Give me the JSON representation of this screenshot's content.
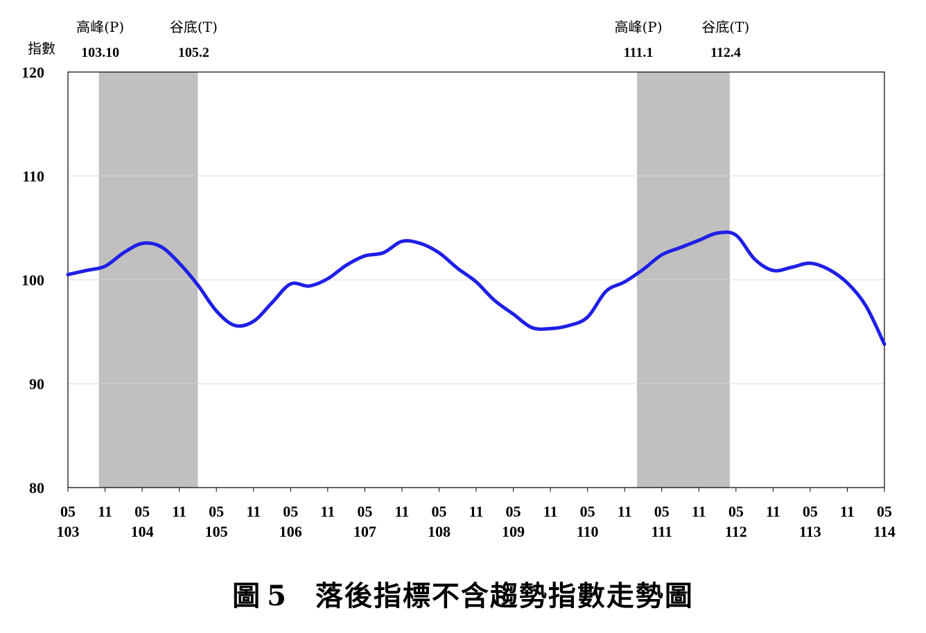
{
  "caption": {
    "figure_label": "圖",
    "figure_number": "5",
    "title": "落後指標不含趨勢指數走勢圖"
  },
  "colors": {
    "line": "#1f1fe6",
    "shade": "#c0c0c0",
    "grid": "#d9d9d9",
    "axis": "#000000"
  },
  "chart_data": {
    "type": "line",
    "ylabel": "指數",
    "ylim": [
      80,
      120
    ],
    "yticks": [
      80,
      90,
      100,
      110,
      120
    ],
    "grid": "horizontal",
    "x_start": "103-05",
    "x_end": "114-05",
    "xtick_labels": [
      {
        "month": "05",
        "year": "103"
      },
      {
        "month": "11",
        "year": ""
      },
      {
        "month": "05",
        "year": "104"
      },
      {
        "month": "11",
        "year": ""
      },
      {
        "month": "05",
        "year": "105"
      },
      {
        "month": "11",
        "year": ""
      },
      {
        "month": "05",
        "year": "106"
      },
      {
        "month": "11",
        "year": ""
      },
      {
        "month": "05",
        "year": "107"
      },
      {
        "month": "11",
        "year": ""
      },
      {
        "month": "05",
        "year": "108"
      },
      {
        "month": "11",
        "year": ""
      },
      {
        "month": "05",
        "year": "109"
      },
      {
        "month": "11",
        "year": ""
      },
      {
        "month": "05",
        "year": "110"
      },
      {
        "month": "11",
        "year": ""
      },
      {
        "month": "05",
        "year": "111"
      },
      {
        "month": "11",
        "year": ""
      },
      {
        "month": "05",
        "year": "112"
      },
      {
        "month": "11",
        "year": ""
      },
      {
        "month": "05",
        "year": "113"
      },
      {
        "month": "11",
        "year": ""
      },
      {
        "month": "05",
        "year": "114"
      }
    ],
    "shaded_periods": [
      {
        "start": "103-10",
        "end": "105-02",
        "peak_label": "高峰(P)",
        "peak_date": "103.10",
        "trough_label": "谷底(T)",
        "trough_date": "105.2"
      },
      {
        "start": "111-01",
        "end": "112-04",
        "peak_label": "高峰(P)",
        "peak_date": "111.1",
        "trough_label": "谷底(T)",
        "trough_date": "112.4"
      }
    ],
    "series": [
      {
        "x": [
          "103-05",
          "103-08",
          "103-11",
          "104-02",
          "104-05",
          "104-08",
          "104-11",
          "105-02",
          "105-05",
          "105-08",
          "105-11",
          "106-02",
          "106-05",
          "106-08",
          "106-11",
          "107-02",
          "107-05",
          "107-08",
          "107-11",
          "108-02",
          "108-05",
          "108-08",
          "108-11",
          "109-02",
          "109-05",
          "109-08",
          "109-11",
          "110-02",
          "110-05",
          "110-08",
          "110-11",
          "111-02",
          "111-05",
          "111-08",
          "111-11",
          "112-02",
          "112-05",
          "112-08",
          "112-11",
          "113-02",
          "113-05",
          "113-08",
          "113-11",
          "114-02",
          "114-05"
        ],
        "values": [
          100.5,
          100.9,
          101.3,
          102.6,
          103.5,
          103.2,
          101.6,
          99.5,
          97.0,
          95.6,
          96.0,
          97.8,
          99.6,
          99.4,
          100.1,
          101.4,
          102.3,
          102.6,
          103.7,
          103.5,
          102.6,
          101.1,
          99.8,
          98.0,
          96.7,
          95.4,
          95.3,
          95.6,
          96.4,
          98.9,
          99.8,
          101.0,
          102.4,
          103.1,
          103.8,
          104.5,
          104.3,
          102.0,
          100.9,
          101.2,
          101.6,
          101.0,
          99.7,
          97.5,
          93.8
        ]
      }
    ]
  }
}
